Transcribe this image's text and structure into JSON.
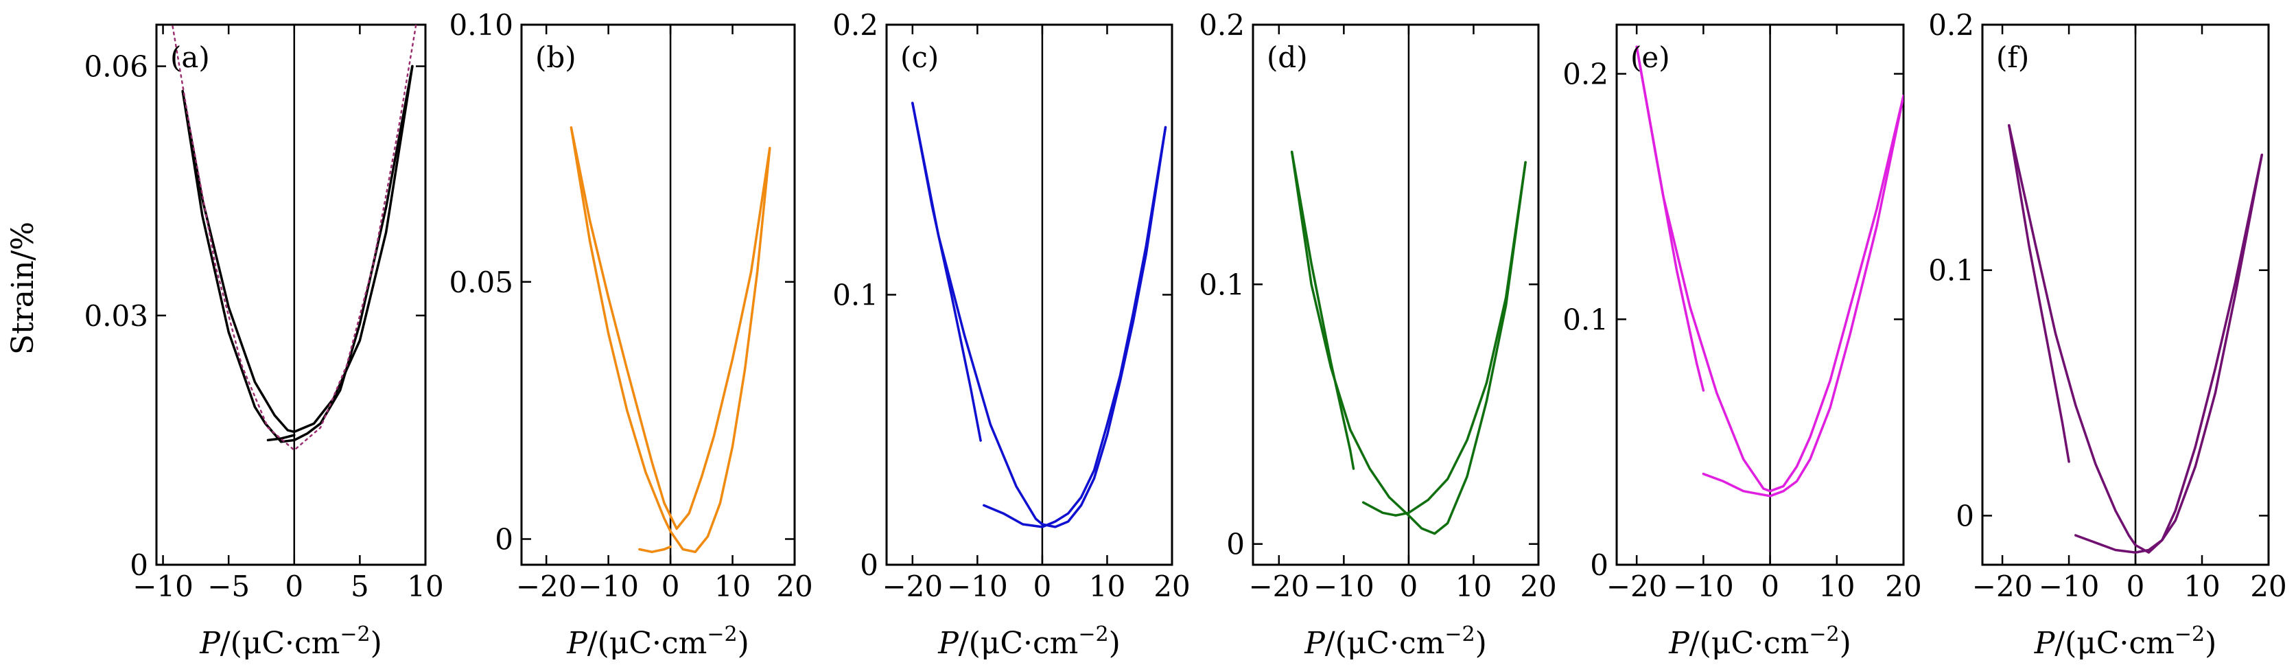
{
  "figure": {
    "ylabel": "Strain/%",
    "xlabel_italic": "P",
    "xlabel_rest": "/(μC·cm",
    "xlabel_exp": "−2",
    "xlabel_close": ")"
  },
  "chart_data": [
    {
      "type": "line",
      "panel_label": "(a)",
      "color": "#000000",
      "xlim": [
        -10.5,
        10
      ],
      "ylim": [
        0,
        0.065
      ],
      "xticks": [
        -10,
        -5,
        0,
        5,
        10
      ],
      "xtick_labels": [
        "−10",
        "−5",
        "0",
        "5",
        "10"
      ],
      "yticks": [
        0,
        0.03,
        0.06
      ],
      "ytick_labels": [
        "0",
        "0.03",
        "0.06"
      ],
      "series": [
        {
          "name": "branch-1",
          "x": [
            -8.5,
            -7,
            -5,
            -3,
            -1.5,
            -0.5,
            0,
            1.5,
            3,
            5,
            7,
            9
          ],
          "y": [
            0.057,
            0.044,
            0.031,
            0.022,
            0.018,
            0.0162,
            0.016,
            0.017,
            0.02,
            0.027,
            0.04,
            0.06
          ]
        },
        {
          "name": "branch-2",
          "x": [
            -8.5,
            -7,
            -5,
            -3,
            -2.2,
            -1,
            0,
            1,
            2,
            3.5,
            5,
            7,
            9
          ],
          "y": [
            0.057,
            0.042,
            0.028,
            0.019,
            0.017,
            0.0148,
            0.015,
            0.0158,
            0.017,
            0.021,
            0.029,
            0.043,
            0.06
          ]
        },
        {
          "name": "branch-3",
          "x": [
            -2,
            -1,
            0
          ],
          "y": [
            0.015,
            0.0152,
            0.0156
          ]
        },
        {
          "name": "fit",
          "dotted": true,
          "color": "#9a2f6f",
          "x": [
            -9.5,
            -8,
            -6,
            -4,
            -2,
            0,
            2,
            4,
            6,
            8,
            9.5
          ],
          "y": [
            0.067,
            0.053,
            0.036,
            0.024,
            0.0165,
            0.0138,
            0.0165,
            0.024,
            0.036,
            0.053,
            0.067
          ]
        }
      ]
    },
    {
      "type": "line",
      "panel_label": "(b)",
      "color": "#f08a10",
      "xlim": [
        -24,
        20
      ],
      "ylim": [
        -0.005,
        0.1
      ],
      "xticks": [
        -20,
        -10,
        0,
        10,
        20
      ],
      "xtick_labels": [
        "−20",
        "−10",
        "0",
        "10",
        "20"
      ],
      "yticks": [
        0,
        0.05,
        0.1
      ],
      "ytick_labels": [
        "0",
        "0.05",
        "0.10"
      ],
      "series": [
        {
          "name": "outer-branch",
          "x": [
            -16,
            -13,
            -10,
            -7,
            -4,
            -1,
            0,
            2,
            4,
            6,
            8,
            10,
            12,
            14,
            16
          ],
          "y": [
            0.08,
            0.058,
            0.04,
            0.025,
            0.013,
            0.004,
            0.0015,
            -0.002,
            -0.0025,
            0.0005,
            0.007,
            0.018,
            0.033,
            0.052,
            0.076
          ]
        },
        {
          "name": "inner-branch",
          "x": [
            -16,
            -13,
            -10,
            -7,
            -5,
            -3,
            -1,
            1,
            3,
            5,
            7,
            10,
            13,
            16
          ],
          "y": [
            0.08,
            0.062,
            0.047,
            0.033,
            0.024,
            0.015,
            0.007,
            0.002,
            0.005,
            0.012,
            0.02,
            0.035,
            0.052,
            0.076
          ]
        },
        {
          "name": "start-segment",
          "x": [
            -5,
            -3,
            -1,
            0
          ],
          "y": [
            -0.002,
            -0.0025,
            -0.002,
            -0.0015
          ]
        }
      ]
    },
    {
      "type": "line",
      "panel_label": "(c)",
      "color": "#1010d0",
      "xlim": [
        -24,
        20
      ],
      "ylim": [
        0,
        0.2
      ],
      "xticks": [
        -20,
        -10,
        0,
        10,
        20
      ],
      "xtick_labels": [
        "−20",
        "−10",
        "0",
        "10",
        "20"
      ],
      "yticks": [
        0,
        0.1,
        0.2
      ],
      "ytick_labels": [
        "0",
        "0.1",
        "0.2"
      ],
      "series": [
        {
          "name": "branch-1",
          "x": [
            -20,
            -17,
            -14,
            -11,
            -9.5
          ],
          "y": [
            0.171,
            0.133,
            0.1,
            0.065,
            0.046
          ]
        },
        {
          "name": "branch-2",
          "x": [
            -20,
            -16,
            -12,
            -8,
            -4,
            -1,
            0,
            2,
            4,
            6,
            8,
            10,
            12,
            14,
            16,
            19
          ],
          "y": [
            0.171,
            0.122,
            0.085,
            0.052,
            0.029,
            0.017,
            0.015,
            0.014,
            0.016,
            0.022,
            0.032,
            0.048,
            0.068,
            0.09,
            0.115,
            0.162
          ]
        },
        {
          "name": "branch-3",
          "x": [
            -9,
            -6,
            -3,
            0,
            2,
            4,
            6,
            8,
            10,
            12,
            14,
            16,
            19
          ],
          "y": [
            0.022,
            0.019,
            0.015,
            0.014,
            0.016,
            0.019,
            0.025,
            0.035,
            0.052,
            0.07,
            0.093,
            0.118,
            0.162
          ]
        }
      ]
    },
    {
      "type": "line",
      "panel_label": "(d)",
      "color": "#107010",
      "xlim": [
        -24,
        20
      ],
      "ylim": [
        -0.008,
        0.2
      ],
      "xticks": [
        -20,
        -10,
        0,
        10,
        20
      ],
      "xtick_labels": [
        "−20",
        "−10",
        "0",
        "10",
        "20"
      ],
      "yticks": [
        0,
        0.1,
        0.2
      ],
      "ytick_labels": [
        "0",
        "0.1",
        "0.2"
      ],
      "series": [
        {
          "name": "branch-1",
          "x": [
            -18,
            -15,
            -12,
            -9,
            -8.5
          ],
          "y": [
            0.151,
            0.108,
            0.07,
            0.036,
            0.029
          ]
        },
        {
          "name": "branch-2",
          "x": [
            -18,
            -15,
            -12,
            -9,
            -6,
            -3,
            0,
            2,
            4,
            6,
            9,
            12,
            15,
            18
          ],
          "y": [
            0.151,
            0.1,
            0.068,
            0.044,
            0.029,
            0.018,
            0.011,
            0.006,
            0.004,
            0.008,
            0.026,
            0.055,
            0.092,
            0.147
          ]
        },
        {
          "name": "branch-3",
          "x": [
            -7,
            -4,
            -2,
            0,
            3,
            6,
            9,
            12,
            15,
            18
          ],
          "y": [
            0.016,
            0.012,
            0.011,
            0.012,
            0.017,
            0.025,
            0.04,
            0.062,
            0.095,
            0.147
          ]
        }
      ]
    },
    {
      "type": "line",
      "panel_label": "(e)",
      "color": "#e020e0",
      "xlim": [
        -23,
        20
      ],
      "ylim": [
        0,
        0.22
      ],
      "xticks": [
        -20,
        -10,
        0,
        10,
        20
      ],
      "xtick_labels": [
        "−20",
        "−10",
        "0",
        "10",
        "20"
      ],
      "yticks": [
        0,
        0.1,
        0.2
      ],
      "ytick_labels": [
        "0",
        "0.1",
        "0.2"
      ],
      "series": [
        {
          "name": "branch-1",
          "x": [
            -20,
            -17,
            -14,
            -11,
            -10
          ],
          "y": [
            0.211,
            0.165,
            0.12,
            0.082,
            0.071
          ]
        },
        {
          "name": "branch-2",
          "x": [
            -20,
            -16,
            -12,
            -8,
            -4,
            -1,
            0,
            2,
            4,
            6,
            9,
            12,
            16,
            20
          ],
          "y": [
            0.211,
            0.15,
            0.105,
            0.07,
            0.043,
            0.031,
            0.03,
            0.032,
            0.04,
            0.052,
            0.075,
            0.105,
            0.145,
            0.191
          ]
        },
        {
          "name": "branch-3",
          "x": [
            -10,
            -7,
            -4,
            -2,
            0,
            2,
            4,
            6,
            9,
            12,
            16,
            20
          ],
          "y": [
            0.037,
            0.034,
            0.03,
            0.029,
            0.028,
            0.03,
            0.034,
            0.043,
            0.064,
            0.094,
            0.138,
            0.191
          ]
        }
      ]
    },
    {
      "type": "line",
      "panel_label": "(f)",
      "color": "#701070",
      "xlim": [
        -23,
        20
      ],
      "ylim": [
        -0.02,
        0.2
      ],
      "xticks": [
        -20,
        -10,
        0,
        10,
        20
      ],
      "xtick_labels": [
        "−20",
        "−10",
        "0",
        "10",
        "20"
      ],
      "yticks": [
        0,
        0.1,
        0.2
      ],
      "ytick_labels": [
        "0",
        "0.1",
        "0.2"
      ],
      "series": [
        {
          "name": "branch-1",
          "x": [
            -19,
            -16,
            -13,
            -11,
            -10
          ],
          "y": [
            0.159,
            0.11,
            0.067,
            0.038,
            0.022
          ]
        },
        {
          "name": "branch-2",
          "x": [
            -19,
            -15,
            -12,
            -9,
            -6,
            -3,
            -1,
            0,
            2,
            4,
            6,
            9,
            12,
            15,
            19
          ],
          "y": [
            0.159,
            0.11,
            0.074,
            0.045,
            0.021,
            0.002,
            -0.008,
            -0.012,
            -0.015,
            -0.01,
            0.002,
            0.028,
            0.06,
            0.095,
            0.147
          ]
        },
        {
          "name": "branch-3",
          "x": [
            -9,
            -6,
            -3,
            0,
            2,
            4,
            6,
            9,
            12,
            15,
            19
          ],
          "y": [
            -0.008,
            -0.011,
            -0.014,
            -0.015,
            -0.014,
            -0.01,
            -0.002,
            0.02,
            0.05,
            0.09,
            0.147
          ]
        }
      ]
    }
  ]
}
